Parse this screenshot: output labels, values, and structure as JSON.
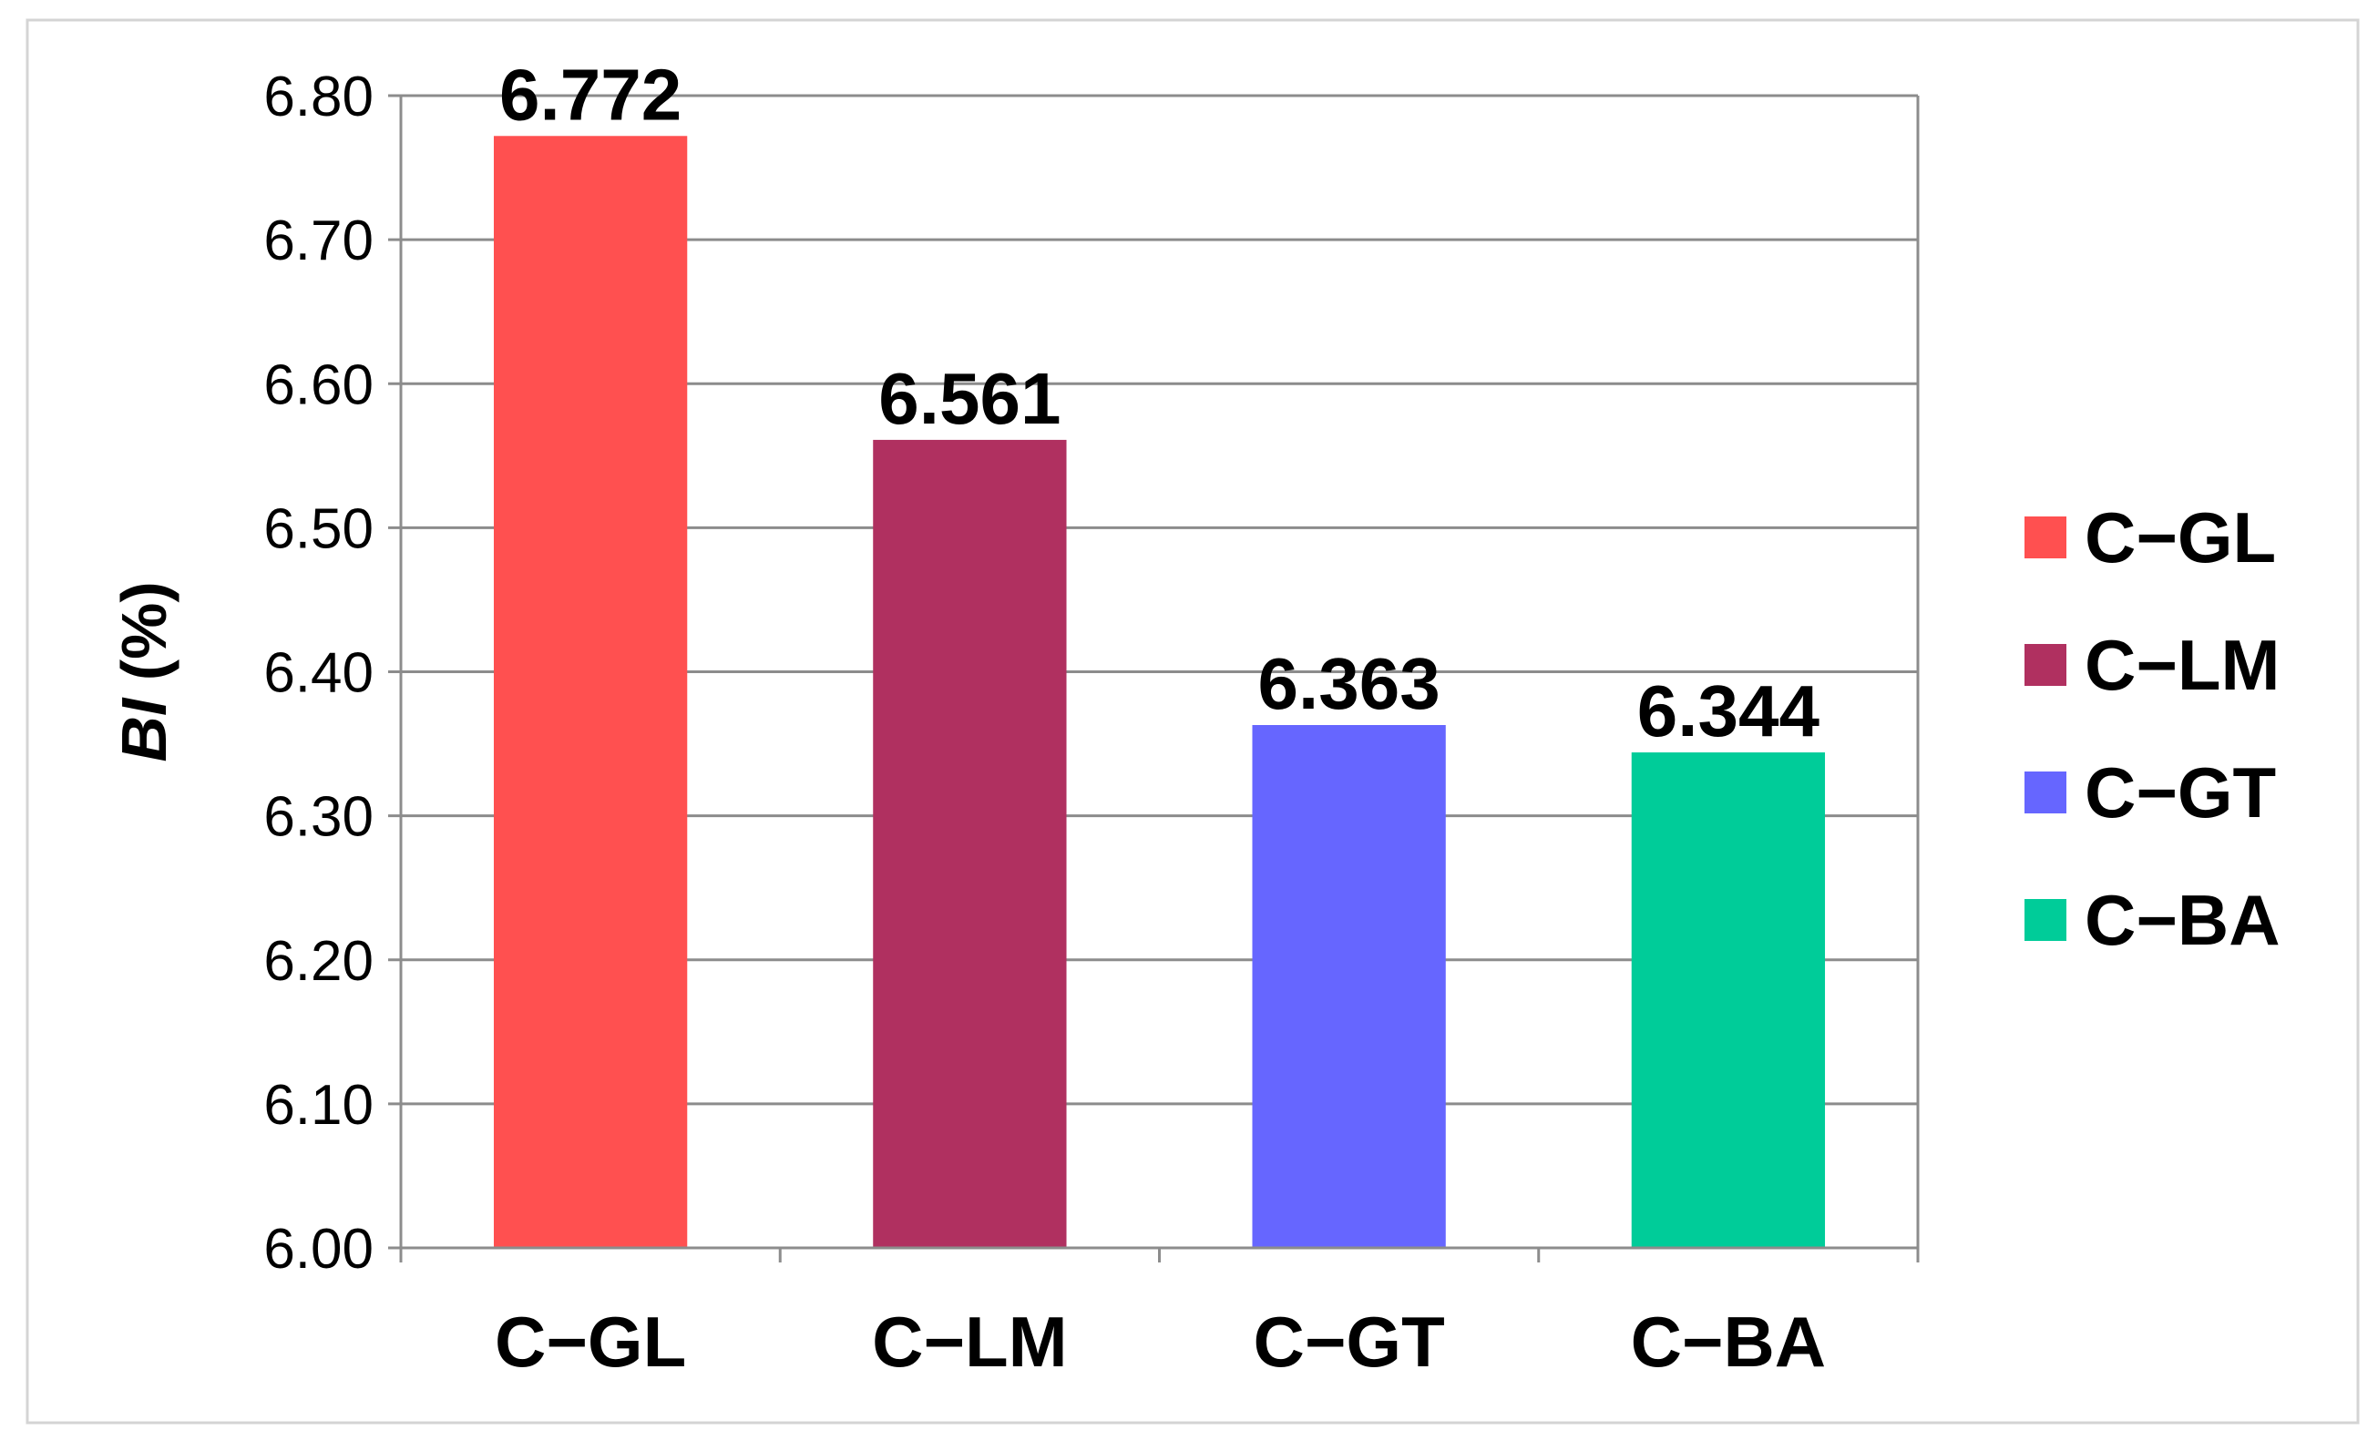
{
  "chart_data": {
    "type": "bar",
    "title": "",
    "xlabel": "",
    "ylabel": {
      "italic_part": "BI",
      "rest": " (%)"
    },
    "categories": [
      "C−GL",
      "C−LM",
      "C−GT",
      "C−BA"
    ],
    "values": [
      6.772,
      6.561,
      6.363,
      6.344
    ],
    "value_labels": [
      "6.772",
      "6.561",
      "6.363",
      "6.344"
    ],
    "colors": [
      "#ff5050",
      "#b03060",
      "#6666ff",
      "#00cc99"
    ],
    "ylim": [
      6.0,
      6.8
    ],
    "yticks": [
      6.0,
      6.1,
      6.2,
      6.3,
      6.4,
      6.5,
      6.6,
      6.7,
      6.8
    ],
    "ytick_labels": [
      "6.00",
      "6.10",
      "6.20",
      "6.30",
      "6.40",
      "6.50",
      "6.60",
      "6.70",
      "6.80"
    ],
    "grid": true,
    "legend": {
      "position": "right",
      "entries": [
        "C−GL",
        "C−LM",
        "C−GT",
        "C−BA"
      ]
    }
  }
}
